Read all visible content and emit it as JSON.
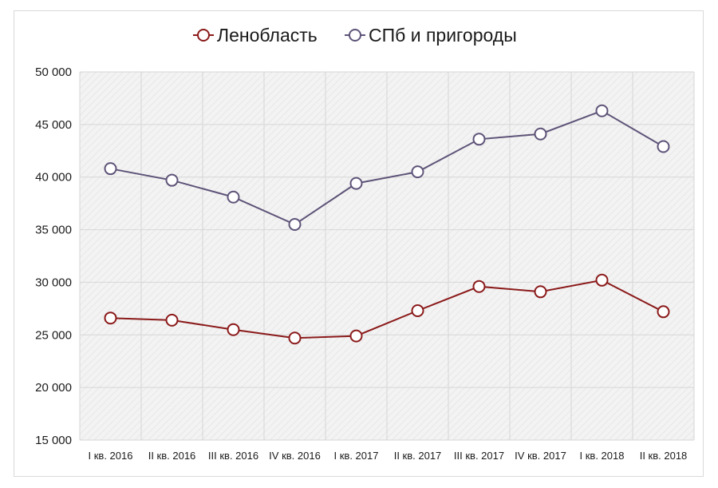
{
  "chart_data": {
    "type": "line",
    "categories": [
      "I кв. 2016",
      "II кв. 2016",
      "III кв. 2016",
      "IV кв. 2016",
      "I кв. 2017",
      "II кв. 2017",
      "III кв. 2017",
      "IV кв. 2017",
      "I кв. 2018",
      "II кв. 2018"
    ],
    "series": [
      {
        "name": "Ленобласть",
        "color": "#8b1a1a",
        "values": [
          26600,
          26400,
          25500,
          24700,
          24900,
          27300,
          29600,
          29100,
          30200,
          27200
        ]
      },
      {
        "name": "СПб и пригороды",
        "color": "#5e5378",
        "values": [
          40800,
          39700,
          38100,
          35500,
          39400,
          40500,
          43600,
          44100,
          46300,
          42900
        ]
      }
    ],
    "ylim": [
      15000,
      50000
    ],
    "yticks": [
      {
        "value": 15000,
        "label": "15 000"
      },
      {
        "value": 20000,
        "label": "20 000"
      },
      {
        "value": 25000,
        "label": "25 000"
      },
      {
        "value": 30000,
        "label": "30 000"
      },
      {
        "value": 35000,
        "label": "35 000"
      },
      {
        "value": 40000,
        "label": "40 000"
      },
      {
        "value": 45000,
        "label": "45 000"
      },
      {
        "value": 50000,
        "label": "50 000"
      }
    ],
    "grid": true,
    "legend_position": "top-center",
    "marker": "hollow-circle",
    "plot_background": "#f2f2f2"
  }
}
